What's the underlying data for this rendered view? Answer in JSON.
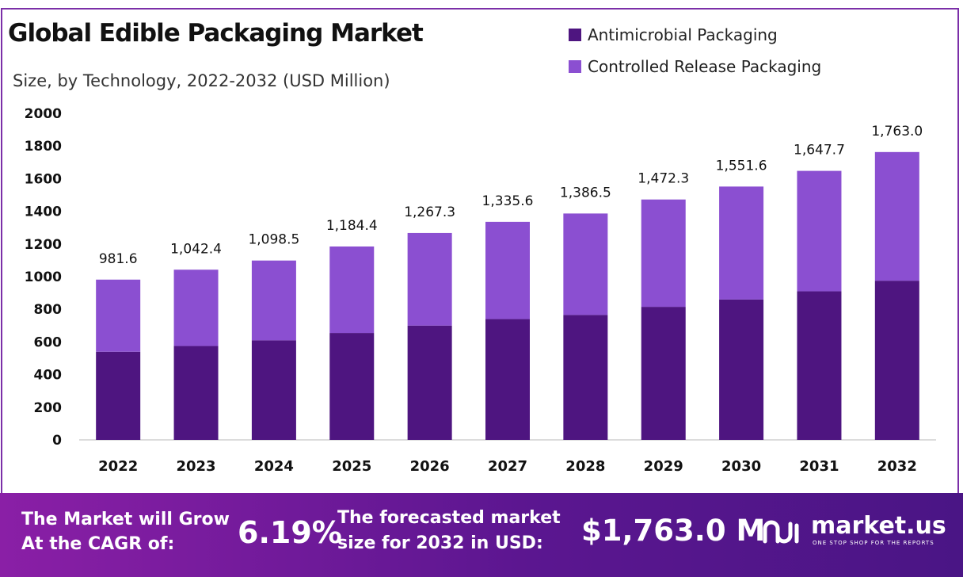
{
  "title": "Global Edible Packaging Market",
  "subtitle": "Size, by Technology, 2022-2032 (USD Million)",
  "colors": {
    "antimicrobial": "#4e1580",
    "controlled_release": "#8b4fd1",
    "footer_start": "#8a1fa6",
    "footer_end": "#4a1585",
    "frame": "#7b2fa8"
  },
  "legend": [
    {
      "label": "Antimicrobial Packaging"
    },
    {
      "label": "Controlled Release Packaging"
    }
  ],
  "chart_data": {
    "type": "bar",
    "stacked": true,
    "title": "Global Edible Packaging Market",
    "subtitle": "Size, by Technology, 2022-2032 (USD Million)",
    "categories": [
      "2022",
      "2023",
      "2024",
      "2025",
      "2026",
      "2027",
      "2028",
      "2029",
      "2030",
      "2031",
      "2032"
    ],
    "series": [
      {
        "name": "Antimicrobial Packaging",
        "values": [
          540,
          575,
          610,
          655,
          700,
          740,
          765,
          815,
          860,
          910,
          975
        ]
      },
      {
        "name": "Controlled Release Packaging",
        "values": [
          441.6,
          467.4,
          488.5,
          529.4,
          567.3,
          595.6,
          621.5,
          657.3,
          691.6,
          737.7,
          788.0
        ]
      }
    ],
    "totals": [
      981.6,
      1042.4,
      1098.5,
      1184.4,
      1267.3,
      1335.6,
      1386.5,
      1472.3,
      1551.6,
      1647.7,
      1763.0
    ],
    "total_labels": [
      "981.6",
      "1,042.4",
      "1,098.5",
      "1,184.4",
      "1,267.3",
      "1,335.6",
      "1,386.5",
      "1,472.3",
      "1,551.6",
      "1,647.7",
      "1,763.0"
    ],
    "ylim": [
      0,
      2000
    ],
    "yticks": [
      0,
      200,
      400,
      600,
      800,
      1000,
      1200,
      1400,
      1600,
      1800,
      2000
    ],
    "grid": false,
    "legend_position": "top-right"
  },
  "footer": {
    "cagr_line1": "The Market will Grow",
    "cagr_line2": "At the CAGR of:",
    "cagr_value": "6.19%",
    "forecast_line1": "The forecasted market",
    "forecast_line2": "size for 2032 in USD:",
    "forecast_value": "$1,763.0 M",
    "brand_name": "market.us",
    "brand_tagline": "ONE STOP SHOP FOR THE REPORTS"
  }
}
